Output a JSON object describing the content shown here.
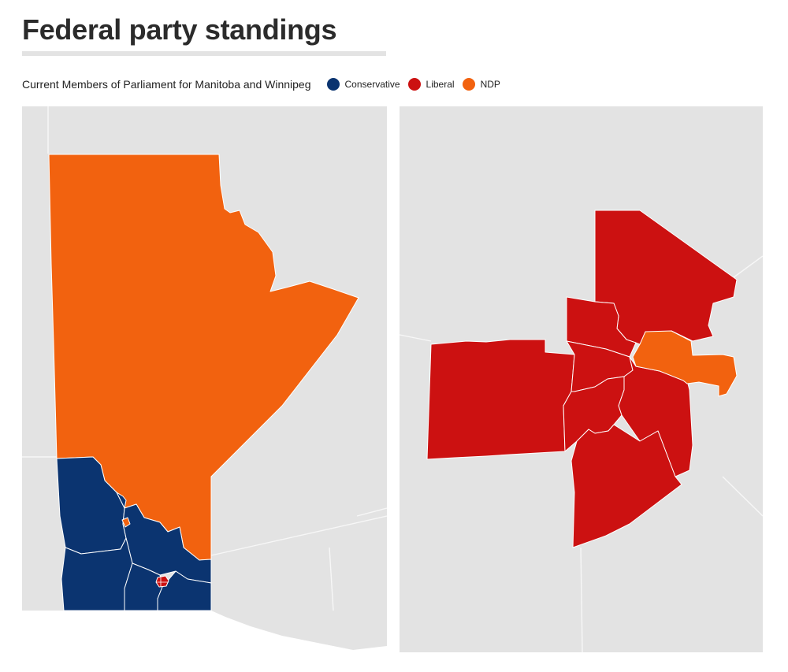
{
  "title": "Federal party standings",
  "subtitle": "Current Members of Parliament for Manitoba and Winnipeg",
  "legend": [
    {
      "label": "Conservative",
      "color": "#0b3470"
    },
    {
      "label": "Liberal",
      "color": "#cc1111"
    },
    {
      "label": "NDP",
      "color": "#f2620f"
    }
  ],
  "colors": {
    "conservative": "#0b3470",
    "liberal": "#cc1111",
    "ndp": "#f2620f",
    "background": "#e3e3e3"
  },
  "maps": {
    "manitoba": {
      "ridings": [
        {
          "party": "ndp"
        },
        {
          "party": "conservative"
        },
        {
          "party": "conservative"
        },
        {
          "party": "conservative"
        },
        {
          "party": "conservative"
        },
        {
          "party": "conservative"
        },
        {
          "party": "conservative"
        },
        {
          "party": "liberal"
        }
      ]
    },
    "winnipeg": {
      "ridings": [
        {
          "party": "liberal"
        },
        {
          "party": "liberal"
        },
        {
          "party": "liberal"
        },
        {
          "party": "liberal"
        },
        {
          "party": "liberal"
        },
        {
          "party": "liberal"
        },
        {
          "party": "liberal"
        },
        {
          "party": "ndp"
        }
      ]
    }
  }
}
